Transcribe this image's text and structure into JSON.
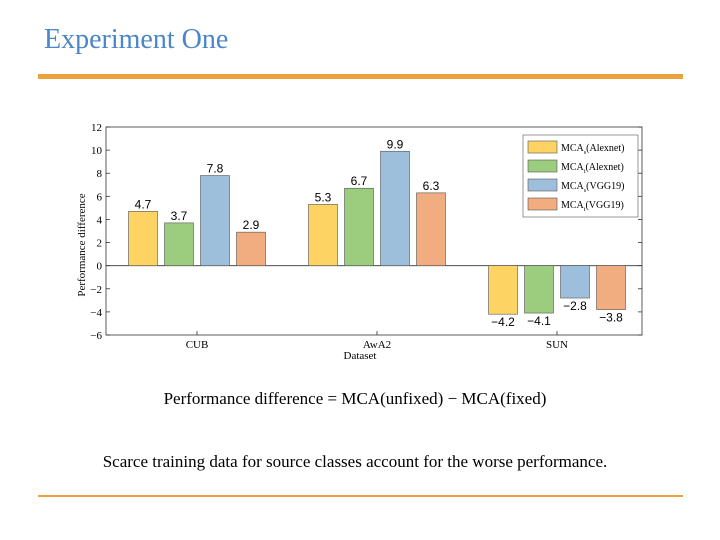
{
  "slide": {
    "title": "Experiment One",
    "formula": "Performance difference = MCA(unfixed) − MCA(fixed)",
    "note": "Scarce training data for source classes account for the worse performance."
  },
  "chart_data": {
    "type": "bar",
    "title": "",
    "xlabel": "Dataset",
    "ylabel": "Performance difference",
    "ylim": [
      -6,
      12
    ],
    "yticks": [
      12,
      10,
      8,
      6,
      4,
      2,
      0,
      -2,
      -4,
      -6
    ],
    "ytick_labels": [
      "12",
      "10",
      "8",
      "6",
      "4",
      "2",
      "0",
      "−2",
      "−4",
      "−6"
    ],
    "categories": [
      "CUB",
      "AwA2",
      "SUN"
    ],
    "legend_position": "top-right",
    "series": [
      {
        "name": "MCA_s(Alexnet)",
        "legend_main": "MCA",
        "legend_sub": "s",
        "legend_rest": "(Alexnet)",
        "color": "#fdd464",
        "values": [
          4.7,
          5.3,
          -4.2
        ],
        "labels": [
          "4.7",
          "5.3",
          "−4.2"
        ]
      },
      {
        "name": "MCA_t(Alexnet)",
        "legend_main": "MCA",
        "legend_sub": "t",
        "legend_rest": "(Alexnet)",
        "color": "#9ccc7e",
        "values": [
          3.7,
          6.7,
          -4.1
        ],
        "labels": [
          "3.7",
          "6.7",
          "−4.1"
        ]
      },
      {
        "name": "MCA_s(VGG19)",
        "legend_main": "MCA",
        "legend_sub": "s",
        "legend_rest": "(VGG19)",
        "color": "#9ebfdc",
        "values": [
          7.8,
          9.9,
          -2.8
        ],
        "labels": [
          "7.8",
          "9.9",
          "−2.8"
        ]
      },
      {
        "name": "MCA_t(VGG19)",
        "legend_main": "MCA",
        "legend_sub": "t",
        "legend_rest": "(VGG19)",
        "color": "#f1ad7f",
        "values": [
          2.9,
          6.3,
          -3.8
        ],
        "labels": [
          "2.9",
          "6.3",
          "−3.8"
        ]
      }
    ]
  }
}
